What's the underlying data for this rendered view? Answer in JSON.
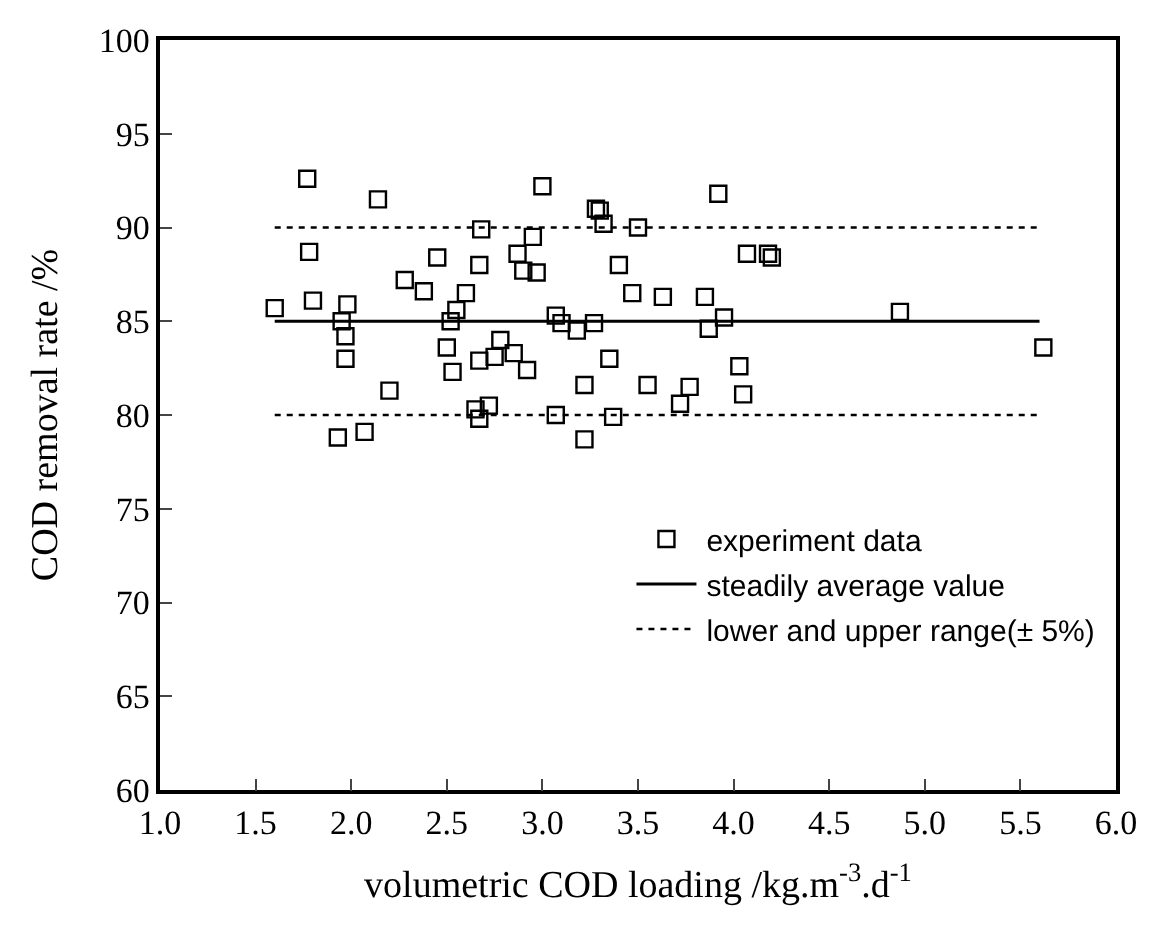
{
  "chart_data": {
    "type": "scatter",
    "xlabel": "volumetric COD loading /kg.m$^{-3}$.d$^{-1}$",
    "ylabel": "COD removal rate /%",
    "xlim": [
      1.0,
      6.0
    ],
    "ylim": [
      60,
      100
    ],
    "xticks": [
      {
        "value": 1,
        "label": "1.0"
      },
      {
        "value": 1.5,
        "label": "1.5"
      },
      {
        "value": 2,
        "label": "2.0"
      },
      {
        "value": 2.5,
        "label": "2.5"
      },
      {
        "value": 3,
        "label": "3.0"
      },
      {
        "value": 3.5,
        "label": "3.5"
      },
      {
        "value": 4,
        "label": "4.0"
      },
      {
        "value": 4.5,
        "label": "4.5"
      },
      {
        "value": 5,
        "label": "5.0"
      },
      {
        "value": 5.5,
        "label": "5.5"
      },
      {
        "value": 6,
        "label": "6.0"
      }
    ],
    "yticks": [
      60,
      65,
      70,
      75,
      80,
      85,
      90,
      95,
      100
    ],
    "legend": "bottom right",
    "series": [
      {
        "name": "experiment data",
        "marker": "square",
        "color": "#000000",
        "x": [
          1.6,
          1.77,
          1.78,
          1.8,
          1.93,
          1.95,
          1.97,
          1.97,
          1.98,
          2.07,
          2.14,
          2.2,
          2.28,
          2.38,
          2.45,
          2.5,
          2.52,
          2.53,
          2.55,
          2.6,
          2.65,
          2.67,
          2.67,
          2.67,
          2.68,
          2.72,
          2.75,
          2.78,
          2.85,
          2.87,
          2.9,
          2.92,
          2.95,
          2.97,
          3.0,
          3.07,
          3.07,
          3.1,
          3.18,
          3.22,
          3.22,
          3.27,
          3.28,
          3.3,
          3.32,
          3.35,
          3.37,
          3.4,
          3.47,
          3.5,
          3.55,
          3.63,
          3.72,
          3.77,
          3.85,
          3.87,
          3.92,
          3.95,
          4.03,
          4.05,
          4.07,
          4.18,
          4.2,
          4.87,
          5.62
        ],
        "values": [
          85.7,
          92.6,
          88.7,
          86.1,
          78.8,
          85.0,
          84.2,
          83.0,
          85.9,
          79.1,
          91.5,
          81.3,
          87.2,
          86.6,
          88.4,
          83.6,
          85.0,
          82.3,
          85.6,
          86.5,
          80.3,
          79.8,
          82.9,
          88.0,
          89.9,
          80.5,
          83.1,
          84.0,
          83.3,
          88.6,
          87.7,
          82.4,
          89.5,
          87.6,
          92.2,
          85.3,
          80.0,
          84.9,
          84.5,
          78.7,
          81.6,
          84.9,
          91.0,
          90.9,
          90.2,
          83.0,
          79.9,
          88.0,
          86.5,
          90.0,
          81.6,
          86.3,
          80.6,
          81.5,
          86.3,
          84.6,
          91.8,
          85.2,
          82.6,
          81.1,
          88.6,
          88.6,
          88.4,
          85.5,
          83.6
        ]
      },
      {
        "name": "steadily average value",
        "type": "line",
        "line_style": "solid",
        "color": "#000000",
        "x": [
          1.6,
          5.6
        ],
        "values": [
          85,
          85
        ]
      },
      {
        "name": "lower and upper range(± 5%)",
        "type": "line",
        "line_style": "dotted",
        "color": "#000000",
        "x": [
          1.6,
          5.6
        ],
        "values": [
          90,
          90
        ]
      },
      {
        "type": "line",
        "line_style": "dotted",
        "color": "#000000",
        "x": [
          1.6,
          5.6
        ],
        "values": [
          80,
          80
        ]
      }
    ]
  }
}
